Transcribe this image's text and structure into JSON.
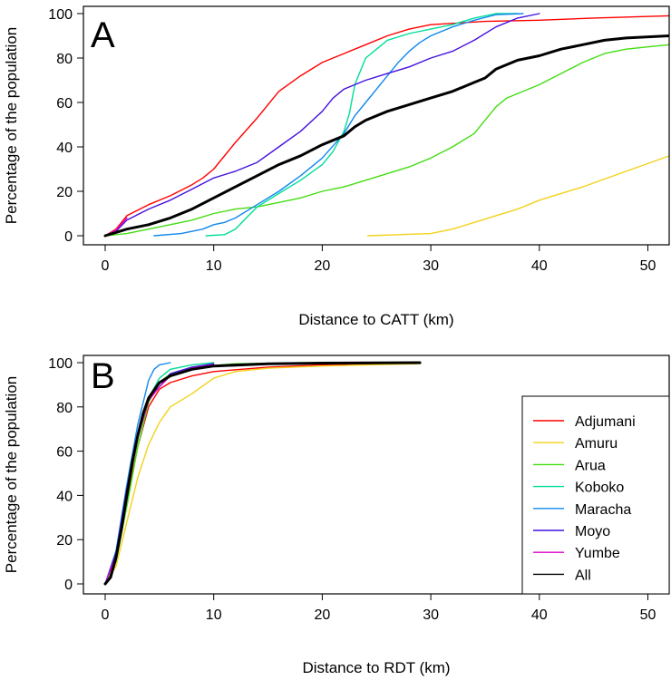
{
  "chart_data": [
    {
      "type": "line",
      "panel_label": "A",
      "xlabel": "Distance to CATT (km)",
      "ylabel": "Percentage of the population",
      "xlim": [
        0,
        52
      ],
      "ylim": [
        0,
        100
      ],
      "xticks": [
        0,
        10,
        20,
        30,
        40,
        50
      ],
      "yticks": [
        0,
        20,
        40,
        60,
        80,
        100
      ],
      "series": [
        {
          "name": "Adjumani",
          "color": "#ff0000",
          "points": [
            [
              0,
              0
            ],
            [
              1,
              3
            ],
            [
              2,
              9
            ],
            [
              4,
              14
            ],
            [
              6,
              18
            ],
            [
              8,
              23
            ],
            [
              9,
              26
            ],
            [
              10,
              30
            ],
            [
              12,
              42
            ],
            [
              14,
              53
            ],
            [
              16,
              65
            ],
            [
              18,
              72
            ],
            [
              20,
              78
            ],
            [
              22,
              82
            ],
            [
              24,
              86
            ],
            [
              26,
              90
            ],
            [
              28,
              93
            ],
            [
              30,
              95
            ],
            [
              35,
              96.5
            ],
            [
              40,
              97
            ],
            [
              45,
              98
            ],
            [
              52,
              99
            ]
          ]
        },
        {
          "name": "Amuru",
          "color": "#f2d21a",
          "points": [
            [
              24.2,
              0
            ],
            [
              27,
              0.5
            ],
            [
              30,
              1
            ],
            [
              32,
              3
            ],
            [
              34,
              6
            ],
            [
              36,
              9
            ],
            [
              38,
              12
            ],
            [
              39,
              14
            ],
            [
              40,
              16
            ],
            [
              44,
              22
            ],
            [
              48,
              29
            ],
            [
              52,
              36
            ]
          ]
        },
        {
          "name": "Arua",
          "color": "#44dd11",
          "points": [
            [
              0,
              0
            ],
            [
              2,
              1
            ],
            [
              4,
              3
            ],
            [
              6,
              5
            ],
            [
              8,
              7
            ],
            [
              10,
              10
            ],
            [
              12,
              12
            ],
            [
              14,
              13
            ],
            [
              16,
              15
            ],
            [
              18,
              17
            ],
            [
              20,
              20
            ],
            [
              22,
              22
            ],
            [
              24,
              25
            ],
            [
              26,
              28
            ],
            [
              28,
              31
            ],
            [
              30,
              35
            ],
            [
              32,
              40
            ],
            [
              34,
              46
            ],
            [
              35,
              52
            ],
            [
              36,
              58
            ],
            [
              37,
              62
            ],
            [
              40,
              68
            ],
            [
              42,
              73
            ],
            [
              44,
              78
            ],
            [
              46,
              82
            ],
            [
              48,
              84
            ],
            [
              50,
              85
            ],
            [
              52,
              86
            ]
          ]
        },
        {
          "name": "Koboko",
          "color": "#00dd99",
          "points": [
            [
              9.3,
              0
            ],
            [
              11,
              0.5
            ],
            [
              12,
              3
            ],
            [
              13,
              8
            ],
            [
              14,
              13
            ],
            [
              16,
              19
            ],
            [
              18,
              25
            ],
            [
              20,
              32
            ],
            [
              21,
              38
            ],
            [
              22,
              47
            ],
            [
              22.5,
              55
            ],
            [
              23,
              68
            ],
            [
              24,
              80
            ],
            [
              25,
              84
            ],
            [
              26,
              88
            ],
            [
              28,
              91
            ],
            [
              30,
              93
            ],
            [
              32,
              95
            ],
            [
              34,
              98
            ],
            [
              36,
              100
            ],
            [
              38,
              100
            ]
          ]
        },
        {
          "name": "Maracha",
          "color": "#1188ee",
          "points": [
            [
              4.5,
              0
            ],
            [
              7,
              1
            ],
            [
              9,
              3
            ],
            [
              10,
              5
            ],
            [
              11,
              6
            ],
            [
              12,
              8
            ],
            [
              14,
              14
            ],
            [
              16,
              20
            ],
            [
              18,
              27
            ],
            [
              20,
              35
            ],
            [
              22,
              46
            ],
            [
              23,
              54
            ],
            [
              24,
              60
            ],
            [
              25,
              66
            ],
            [
              26,
              72
            ],
            [
              27,
              78
            ],
            [
              28,
              83
            ],
            [
              29,
              87
            ],
            [
              30,
              90
            ],
            [
              32,
              94
            ],
            [
              34,
              97
            ],
            [
              36,
              99.5
            ],
            [
              38.5,
              100
            ]
          ]
        },
        {
          "name": "Moyo",
          "color": "#4411dd",
          "points": [
            [
              0,
              0
            ],
            [
              1,
              2
            ],
            [
              2,
              7
            ],
            [
              4,
              12
            ],
            [
              6,
              16
            ],
            [
              8,
              21
            ],
            [
              10,
              26
            ],
            [
              12,
              29
            ],
            [
              14,
              33
            ],
            [
              16,
              40
            ],
            [
              18,
              47
            ],
            [
              20,
              56
            ],
            [
              21,
              62
            ],
            [
              22,
              66
            ],
            [
              24,
              70
            ],
            [
              26,
              73
            ],
            [
              28,
              76
            ],
            [
              30,
              80
            ],
            [
              32,
              83
            ],
            [
              34,
              88
            ],
            [
              36,
              94
            ],
            [
              38,
              98
            ],
            [
              40,
              100
            ]
          ]
        },
        {
          "name": "Yumbe",
          "color": "#dd00cc",
          "points": [
            [
              0,
              0
            ],
            [
              1,
              2.5
            ],
            [
              2,
              8
            ]
          ]
        },
        {
          "name": "All",
          "color": "#000000",
          "points": [
            [
              0,
              0
            ],
            [
              2,
              3
            ],
            [
              4,
              5
            ],
            [
              6,
              8
            ],
            [
              8,
              12
            ],
            [
              10,
              17
            ],
            [
              12,
              22
            ],
            [
              14,
              27
            ],
            [
              16,
              32
            ],
            [
              18,
              36
            ],
            [
              20,
              41
            ],
            [
              22,
              45
            ],
            [
              23,
              49
            ],
            [
              24,
              52
            ],
            [
              26,
              56
            ],
            [
              28,
              59
            ],
            [
              30,
              62
            ],
            [
              32,
              65
            ],
            [
              34,
              69
            ],
            [
              35,
              71
            ],
            [
              36,
              75
            ],
            [
              38,
              79
            ],
            [
              40,
              81
            ],
            [
              42,
              84
            ],
            [
              44,
              86
            ],
            [
              46,
              88
            ],
            [
              48,
              89
            ],
            [
              52,
              90
            ]
          ]
        }
      ]
    },
    {
      "type": "line",
      "panel_label": "B",
      "xlabel": "Distance to RDT (km)",
      "ylabel": "Percentage of the population",
      "xlim": [
        0,
        52
      ],
      "ylim": [
        0,
        100
      ],
      "xticks": [
        0,
        10,
        20,
        30,
        40,
        50
      ],
      "yticks": [
        0,
        20,
        40,
        60,
        80,
        100
      ],
      "legend_position": "bottom-right",
      "series": [
        {
          "name": "Adjumani",
          "color": "#ff0000",
          "points": [
            [
              0,
              0
            ],
            [
              1,
              12
            ],
            [
              2,
              38
            ],
            [
              3,
              62
            ],
            [
              4,
              80
            ],
            [
              5,
              88
            ],
            [
              6,
              91
            ],
            [
              8,
              94
            ],
            [
              10,
              96
            ],
            [
              15,
              98
            ],
            [
              20,
              99
            ],
            [
              29,
              100
            ]
          ]
        },
        {
          "name": "Amuru",
          "color": "#f2d21a",
          "points": [
            [
              0,
              0
            ],
            [
              1,
              8
            ],
            [
              2,
              28
            ],
            [
              3,
              48
            ],
            [
              4,
              63
            ],
            [
              5,
              73
            ],
            [
              6,
              80
            ],
            [
              8,
              86
            ],
            [
              10,
              93
            ],
            [
              12,
              96
            ],
            [
              15,
              97.5
            ],
            [
              20,
              98.5
            ],
            [
              29,
              99.5
            ]
          ]
        },
        {
          "name": "Arua",
          "color": "#44dd11",
          "points": [
            [
              0,
              0
            ],
            [
              1,
              10
            ],
            [
              2,
              35
            ],
            [
              3,
              62
            ],
            [
              4,
              82
            ],
            [
              5,
              91
            ],
            [
              6,
              95
            ],
            [
              8,
              98
            ],
            [
              12,
              99.5
            ],
            [
              20,
              100
            ]
          ]
        },
        {
          "name": "Koboko",
          "color": "#00dd99",
          "points": [
            [
              0,
              0
            ],
            [
              1,
              14
            ],
            [
              2,
              42
            ],
            [
              3,
              66
            ],
            [
              4,
              84
            ],
            [
              5,
              93
            ],
            [
              6,
              97
            ],
            [
              8,
              99
            ],
            [
              10,
              100
            ]
          ]
        },
        {
          "name": "Maracha",
          "color": "#1188ee",
          "points": [
            [
              0,
              0
            ],
            [
              1,
              15
            ],
            [
              2,
              45
            ],
            [
              3,
              72
            ],
            [
              4,
              92
            ],
            [
              4.5,
              97
            ],
            [
              5,
              99
            ],
            [
              6,
              100
            ]
          ]
        },
        {
          "name": "Moyo",
          "color": "#4411dd",
          "points": [
            [
              0,
              0
            ],
            [
              1,
              14
            ],
            [
              2,
              43
            ],
            [
              3,
              68
            ],
            [
              4,
              84
            ],
            [
              5,
              89
            ],
            [
              6,
              95
            ],
            [
              8,
              98
            ],
            [
              10,
              99.5
            ]
          ]
        },
        {
          "name": "Yumbe",
          "color": "#dd00cc",
          "points": [
            [
              0,
              0
            ],
            [
              1,
              13
            ],
            [
              2,
              41
            ],
            [
              3,
              66
            ],
            [
              4,
              83
            ],
            [
              5,
              89
            ],
            [
              6,
              94
            ],
            [
              8,
              97.5
            ],
            [
              10,
              99
            ]
          ]
        },
        {
          "name": "All",
          "color": "#000000",
          "points": [
            [
              0,
              0
            ],
            [
              0.5,
              3
            ],
            [
              1,
              12
            ],
            [
              1.5,
              25
            ],
            [
              2,
              40
            ],
            [
              2.5,
              55
            ],
            [
              3,
              67
            ],
            [
              3.5,
              77
            ],
            [
              4,
              84
            ],
            [
              5,
              91
            ],
            [
              6,
              94
            ],
            [
              8,
              97
            ],
            [
              10,
              98.5
            ],
            [
              15,
              99.5
            ],
            [
              20,
              99.8
            ],
            [
              29,
              100
            ]
          ]
        }
      ]
    }
  ]
}
